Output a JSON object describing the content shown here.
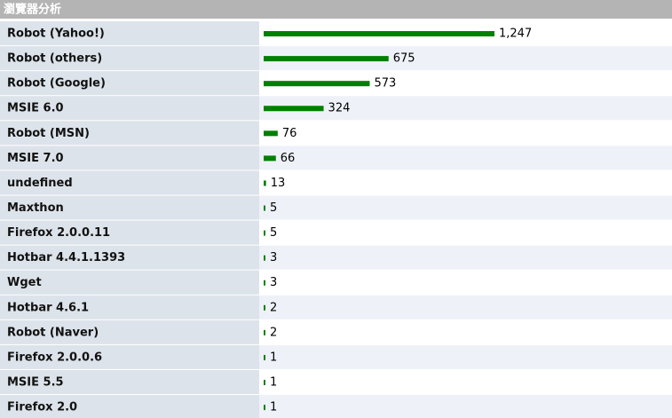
{
  "chart_data": {
    "type": "bar",
    "title": "瀏覽器分析",
    "categories": [
      "Robot (Yahoo!)",
      "Robot (others)",
      "Robot (Google)",
      "MSIE 6.0",
      "Robot (MSN)",
      "MSIE 7.0",
      "undefined",
      "Maxthon",
      "Firefox 2.0.0.11",
      "Hotbar 4.4.1.1393",
      "Wget",
      "Hotbar 4.6.1",
      "Robot (Naver)",
      "Firefox 2.0.0.6",
      "MSIE 5.5",
      "Firefox 2.0"
    ],
    "values": [
      1247,
      675,
      573,
      324,
      76,
      66,
      13,
      5,
      5,
      3,
      3,
      2,
      2,
      1,
      1,
      1
    ],
    "value_labels": [
      "1,247",
      "675",
      "573",
      "324",
      "76",
      "66",
      "13",
      "5",
      "5",
      "3",
      "3",
      "2",
      "2",
      "1",
      "1",
      "1"
    ],
    "color": "#008000"
  }
}
